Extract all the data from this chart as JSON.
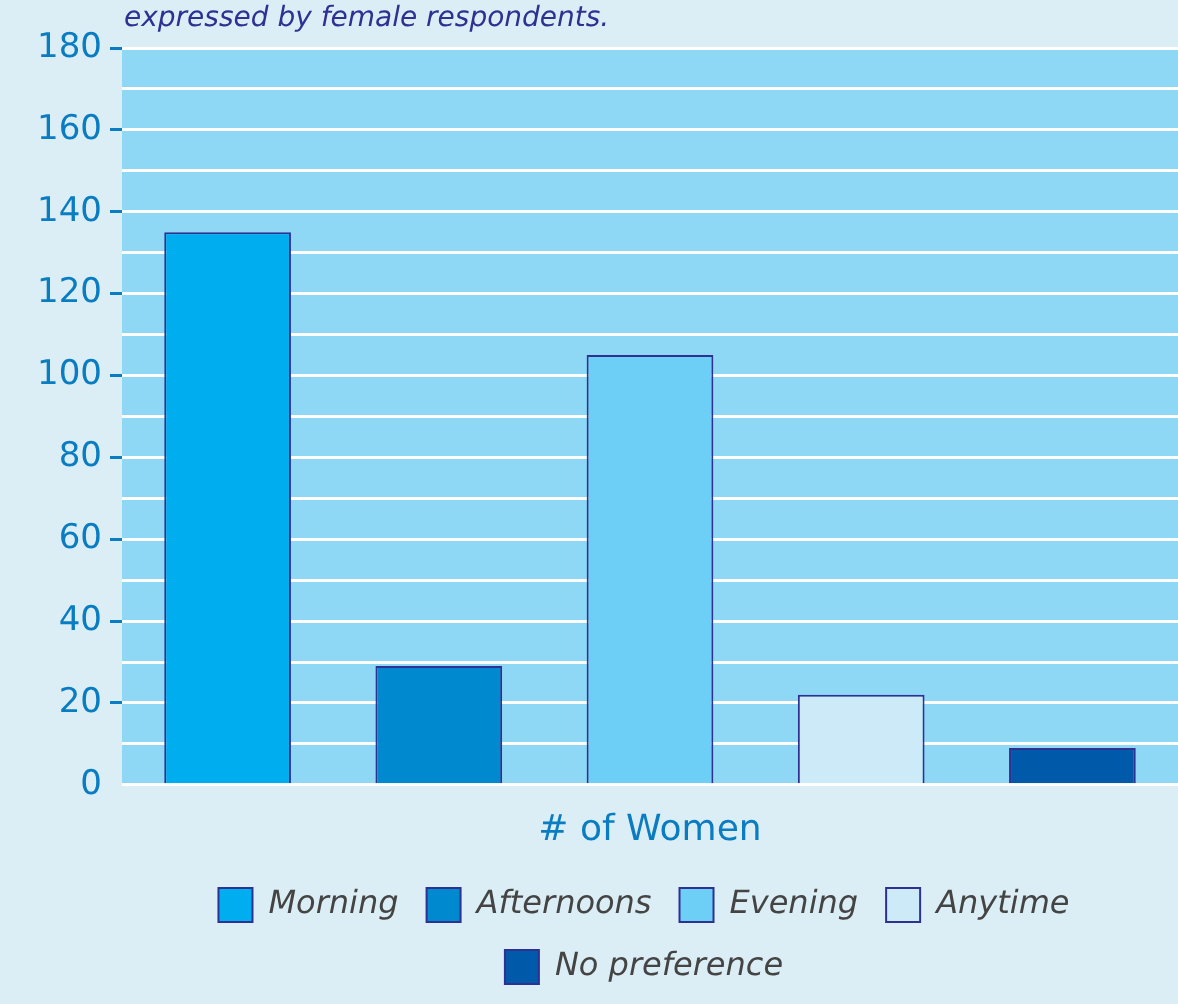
{
  "chart_data": {
    "type": "bar",
    "title": "expressed by female respondents.",
    "xlabel": "# of Women",
    "categories": [
      null,
      null,
      null,
      null,
      null
    ],
    "series": [
      {
        "name": "Morning",
        "color": "#00aeef",
        "values": [
          135,
          null,
          null,
          null,
          null
        ]
      },
      {
        "name": "Afternoons",
        "color": "#0089cf",
        "values": [
          null,
          29,
          null,
          null,
          null
        ]
      },
      {
        "name": "Evening",
        "color": "#6dcff6",
        "values": [
          null,
          null,
          105,
          null,
          null
        ]
      },
      {
        "name": "Anytime",
        "color": "#cdeaf9",
        "values": [
          null,
          null,
          null,
          22,
          null
        ]
      },
      {
        "name": "No preference",
        "color": "#0059a9",
        "values": [
          null,
          null,
          null,
          null,
          9
        ]
      }
    ],
    "ylim": [
      0,
      180
    ],
    "yticks": [
      0,
      {
        "value": 10,
        "label": null
      },
      20,
      {
        "value": 30,
        "label": null
      },
      40,
      {
        "value": 50,
        "label": null
      },
      60,
      {
        "value": 70,
        "label": null
      },
      80,
      {
        "value": 90,
        "label": null
      },
      100,
      {
        "value": 110,
        "label": null
      },
      120,
      {
        "value": 130,
        "label": null
      },
      140,
      {
        "value": 150,
        "label": null
      },
      160,
      {
        "value": 170,
        "label": null
      },
      180
    ],
    "tick_labels": "y",
    "grid": "y",
    "legend": "bottom"
  }
}
